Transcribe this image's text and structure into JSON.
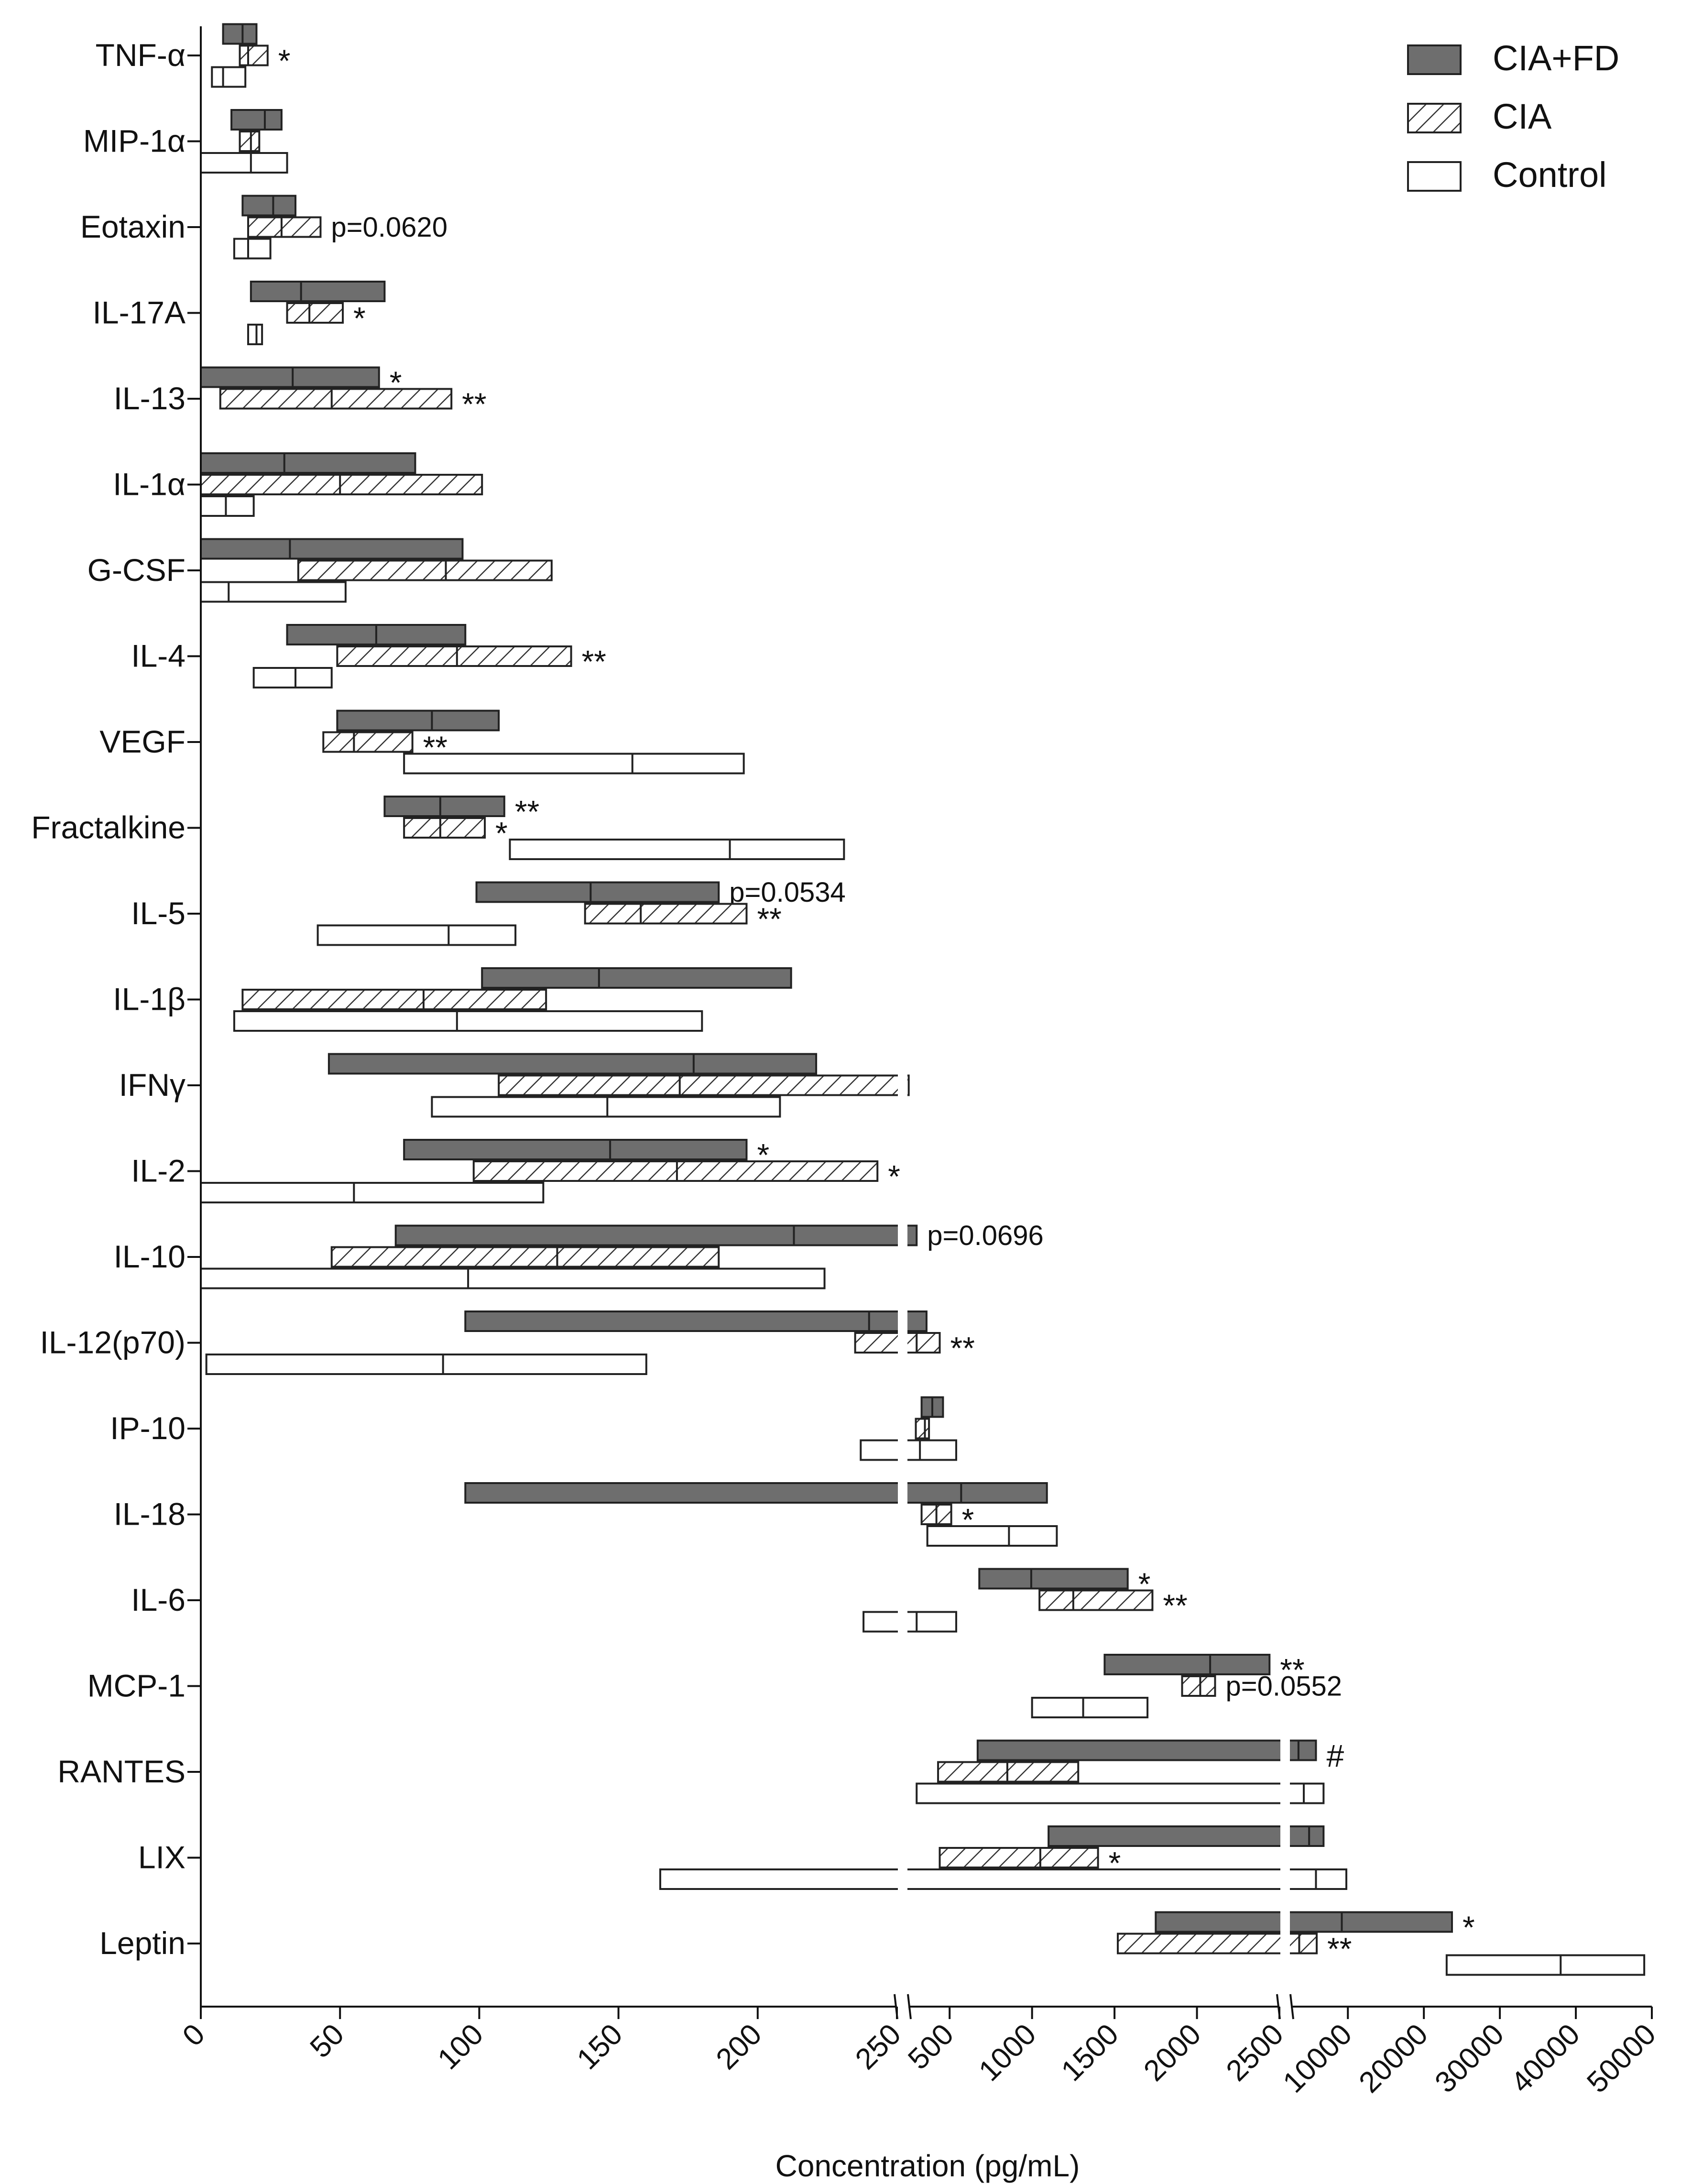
{
  "chart_data": {
    "type": "floating-bar",
    "title": "",
    "xlabel": "Concentration (pg/mL)",
    "ylabel": "",
    "grid": false,
    "legend_position": "top-right",
    "axis_segments": [
      {
        "range": [
          0,
          250
        ],
        "ticks": [
          0,
          50,
          100,
          150,
          200,
          250
        ]
      },
      {
        "range": [
          250,
          2500
        ],
        "ticks": [
          500,
          1000,
          1500,
          2000,
          2500
        ]
      },
      {
        "range": [
          2500,
          50000
        ],
        "ticks": [
          10000,
          20000,
          30000,
          40000,
          50000
        ]
      }
    ],
    "series": [
      {
        "name": "CIA+FD",
        "style": "solid",
        "color": "#6e6e6e"
      },
      {
        "name": "CIA",
        "style": "hatched",
        "color": "#ffffff"
      },
      {
        "name": "Control",
        "style": "open",
        "color": "#ffffff"
      }
    ],
    "categories": [
      {
        "label": "TNF-α",
        "bars": [
          {
            "series": "CIA+FD",
            "min": 8,
            "median": 15,
            "max": 20
          },
          {
            "series": "CIA",
            "min": 14,
            "median": 17,
            "max": 24,
            "sig": "*"
          },
          {
            "series": "Control",
            "min": 4,
            "median": 8,
            "max": 16
          }
        ]
      },
      {
        "label": "MIP-1α",
        "bars": [
          {
            "series": "CIA+FD",
            "min": 11,
            "median": 23,
            "max": 29
          },
          {
            "series": "CIA",
            "min": 14,
            "median": 18,
            "max": 21
          },
          {
            "series": "Control",
            "min": 0,
            "median": 18,
            "max": 31
          }
        ]
      },
      {
        "label": "Eotaxin",
        "bars": [
          {
            "series": "CIA+FD",
            "min": 15,
            "median": 26,
            "max": 34
          },
          {
            "series": "CIA",
            "min": 17,
            "median": 29,
            "max": 43,
            "sig": "p=0.0620"
          },
          {
            "series": "Control",
            "min": 12,
            "median": 17,
            "max": 25
          }
        ]
      },
      {
        "label": "IL-17A",
        "bars": [
          {
            "series": "CIA+FD",
            "min": 18,
            "median": 36,
            "max": 66
          },
          {
            "series": "CIA",
            "min": 31,
            "median": 39,
            "max": 51,
            "sig": "*"
          },
          {
            "series": "Control",
            "min": 17,
            "median": 20,
            "max": 22
          }
        ]
      },
      {
        "label": "IL-13",
        "bars": [
          {
            "series": "CIA+FD",
            "min": 0,
            "median": 33,
            "max": 64,
            "sig": "*"
          },
          {
            "series": "CIA",
            "min": 7,
            "median": 47,
            "max": 90,
            "sig": "**"
          }
        ]
      },
      {
        "label": "IL-1α",
        "bars": [
          {
            "series": "CIA+FD",
            "min": 0,
            "median": 30,
            "max": 77
          },
          {
            "series": "CIA",
            "min": 0,
            "median": 50,
            "max": 101
          },
          {
            "series": "Control",
            "min": 0,
            "median": 9,
            "max": 19
          }
        ]
      },
      {
        "label": "G-CSF",
        "bars": [
          {
            "series": "CIA+FD",
            "min": 0,
            "median": 32,
            "max": 94
          },
          {
            "series": "CIA",
            "min": 35,
            "median": 88,
            "max": 126
          },
          {
            "series": "Control",
            "min": 0,
            "median": 10,
            "max": 52
          }
        ]
      },
      {
        "label": "IL-4",
        "bars": [
          {
            "series": "CIA+FD",
            "min": 31,
            "median": 63,
            "max": 95
          },
          {
            "series": "CIA",
            "min": 49,
            "median": 92,
            "max": 133,
            "sig": "**"
          },
          {
            "series": "Control",
            "min": 19,
            "median": 34,
            "max": 47
          }
        ]
      },
      {
        "label": "VEGF",
        "bars": [
          {
            "series": "CIA+FD",
            "min": 49,
            "median": 83,
            "max": 107
          },
          {
            "series": "CIA",
            "min": 44,
            "median": 55,
            "max": 76,
            "sig": "**"
          },
          {
            "series": "Control",
            "min": 73,
            "median": 155,
            "max": 195
          }
        ]
      },
      {
        "label": "Fractalkine",
        "bars": [
          {
            "series": "CIA+FD",
            "min": 66,
            "median": 86,
            "max": 109,
            "sig": "**"
          },
          {
            "series": "CIA",
            "min": 73,
            "median": 86,
            "max": 102,
            "sig": "*"
          },
          {
            "series": "Control",
            "min": 111,
            "median": 190,
            "max": 231
          }
        ]
      },
      {
        "label": "IL-5",
        "bars": [
          {
            "series": "CIA+FD",
            "min": 99,
            "median": 140,
            "max": 186,
            "sig": "p=0.0534"
          },
          {
            "series": "CIA",
            "min": 138,
            "median": 158,
            "max": 196,
            "sig": "**"
          },
          {
            "series": "Control",
            "min": 42,
            "median": 89,
            "max": 113
          }
        ]
      },
      {
        "label": "IL-1β",
        "bars": [
          {
            "series": "CIA+FD",
            "min": 101,
            "median": 143,
            "max": 212
          },
          {
            "series": "CIA",
            "min": 15,
            "median": 80,
            "max": 124
          },
          {
            "series": "Control",
            "min": 12,
            "median": 92,
            "max": 180
          }
        ]
      },
      {
        "label": "IFNγ",
        "bars": [
          {
            "series": "CIA+FD",
            "min": 46,
            "median": 177,
            "max": 221
          },
          {
            "series": "CIA",
            "min": 107,
            "median": 172,
            "max": 252
          },
          {
            "series": "Control",
            "min": 83,
            "median": 146,
            "max": 208
          }
        ]
      },
      {
        "label": "IL-2",
        "bars": [
          {
            "series": "CIA+FD",
            "min": 73,
            "median": 147,
            "max": 196,
            "sig": "*"
          },
          {
            "series": "CIA",
            "min": 98,
            "median": 171,
            "max": 243,
            "sig": "*"
          },
          {
            "series": "Control",
            "min": 0,
            "median": 55,
            "max": 123
          }
        ]
      },
      {
        "label": "IL-10",
        "bars": [
          {
            "series": "CIA+FD",
            "min": 70,
            "median": 213,
            "max": 300,
            "sig": "p=0.0696"
          },
          {
            "series": "CIA",
            "min": 47,
            "median": 128,
            "max": 186
          },
          {
            "series": "Control",
            "min": 0,
            "median": 96,
            "max": 224
          }
        ]
      },
      {
        "label": "IL-12(p70)",
        "bars": [
          {
            "series": "CIA+FD",
            "min": 95,
            "median": 240,
            "max": 360
          },
          {
            "series": "CIA",
            "min": 235,
            "median": 300,
            "max": 440,
            "sig": "**"
          },
          {
            "series": "Control",
            "min": 2,
            "median": 87,
            "max": 160
          }
        ]
      },
      {
        "label": "IP-10",
        "bars": [
          {
            "series": "CIA+FD",
            "min": 330,
            "median": 395,
            "max": 460
          },
          {
            "series": "CIA",
            "min": 295,
            "median": 350,
            "max": 375
          },
          {
            "series": "Control",
            "min": 237,
            "median": 320,
            "max": 540
          }
        ]
      },
      {
        "label": "IL-18",
        "bars": [
          {
            "series": "CIA+FD",
            "min": 95,
            "median": 570,
            "max": 1090
          },
          {
            "series": "CIA",
            "min": 330,
            "median": 420,
            "max": 510,
            "sig": "*"
          },
          {
            "series": "Control",
            "min": 365,
            "median": 860,
            "max": 1150
          }
        ]
      },
      {
        "label": "IL-6",
        "bars": [
          {
            "series": "CIA+FD",
            "min": 680,
            "median": 995,
            "max": 1580,
            "sig": "*"
          },
          {
            "series": "CIA",
            "min": 1045,
            "median": 1250,
            "max": 1730,
            "sig": "**"
          },
          {
            "series": "Control",
            "min": 238,
            "median": 300,
            "max": 540
          }
        ]
      },
      {
        "label": "MCP-1",
        "bars": [
          {
            "series": "CIA+FD",
            "min": 1440,
            "median": 2080,
            "max": 2440,
            "sig": "**"
          },
          {
            "series": "CIA",
            "min": 1910,
            "median": 2020,
            "max": 2110,
            "sig": "p=0.0552"
          },
          {
            "series": "Control",
            "min": 1000,
            "median": 1310,
            "max": 1700
          }
        ]
      },
      {
        "label": "RANTES",
        "bars": [
          {
            "series": "CIA+FD",
            "min": 670,
            "median": 3500,
            "max": 5800,
            "sig": "#"
          },
          {
            "series": "CIA",
            "min": 430,
            "median": 850,
            "max": 1280
          },
          {
            "series": "Control",
            "min": 300,
            "median": 4200,
            "max": 6800
          }
        ]
      },
      {
        "label": "LIX",
        "bars": [
          {
            "series": "CIA+FD",
            "min": 1100,
            "median": 4900,
            "max": 6800
          },
          {
            "series": "CIA",
            "min": 440,
            "median": 1050,
            "max": 1400,
            "sig": "*"
          },
          {
            "series": "Control",
            "min": 165,
            "median": 5800,
            "max": 9800
          }
        ]
      },
      {
        "label": "Leptin",
        "bars": [
          {
            "series": "CIA+FD",
            "min": 1750,
            "median": 9200,
            "max": 23700,
            "sig": "*"
          },
          {
            "series": "CIA",
            "min": 1520,
            "median": 3600,
            "max": 5900,
            "sig": "**"
          },
          {
            "series": "Control",
            "min": 23000,
            "median": 38000,
            "max": 49000
          }
        ]
      }
    ]
  }
}
